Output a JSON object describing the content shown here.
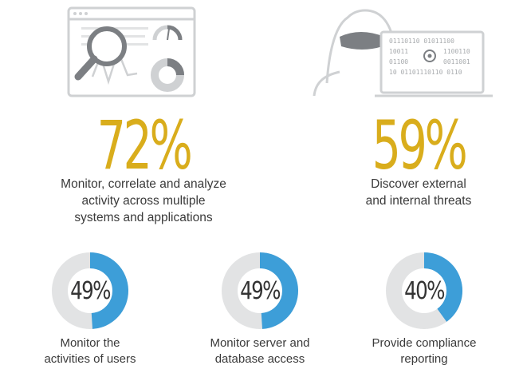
{
  "colors": {
    "accent_gold": "#d9ad1c",
    "donut_blue": "#3d9ed8",
    "donut_track": "#e2e3e4",
    "icon_gray": "#cfd1d3",
    "icon_dark": "#7c7f83"
  },
  "icons": {
    "left": "monitoring-dashboard-icon",
    "right": "hacker-laptop-icon"
  },
  "binary_lines": [
    "01110110 01011100",
    "10011",
    "1100110",
    "01100",
    "0011001",
    "10 01101110110 0110"
  ],
  "chart_data": [
    {
      "type": "stat",
      "value": 72,
      "label": "72%",
      "caption": [
        "Monitor, correlate and analyze",
        "activity across multiple",
        "systems and applications"
      ]
    },
    {
      "type": "stat",
      "value": 59,
      "label": "59%",
      "caption": [
        "Discover external",
        "and internal threats"
      ]
    },
    {
      "type": "donut",
      "donuts": [
        {
          "value": 49,
          "label": "49%",
          "caption": [
            "Monitor the",
            "activities of users"
          ]
        },
        {
          "value": 49,
          "label": "49%",
          "caption": [
            "Monitor server and",
            "database access"
          ]
        },
        {
          "value": 40,
          "label": "40%",
          "caption": [
            "Provide compliance",
            "reporting"
          ]
        }
      ]
    }
  ]
}
